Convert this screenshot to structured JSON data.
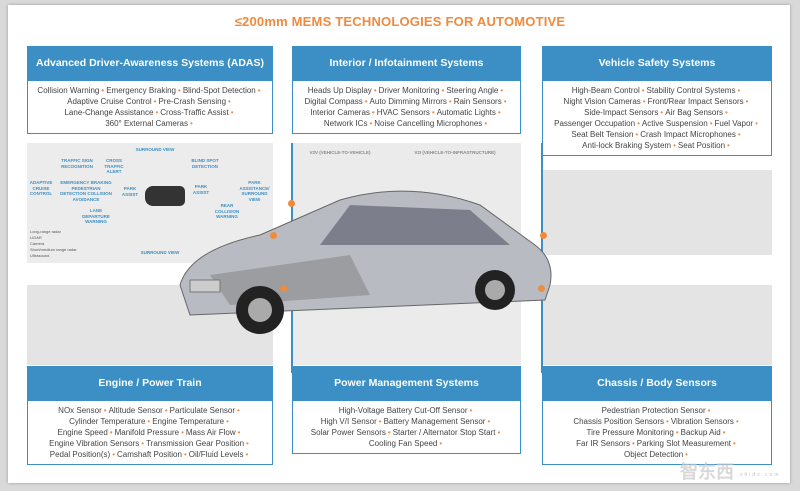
{
  "title": "≤200mm MEMS TECHNOLOGIES FOR AUTOMOTIVE",
  "colors": {
    "accent": "#f08a3c",
    "header": "#3b8fc5"
  },
  "panels": [
    {
      "id": "adas",
      "title": "Advanced Driver-Awareness Systems (ADAS)",
      "lines": [
        [
          "Collision Warning",
          "Emergency Braking",
          "Blind-Spot Detection"
        ],
        [
          "Adaptive Cruise Control",
          "Pre-Crash Sensing"
        ],
        [
          "Lane-Change Assistance",
          "Cross-Traffic Assist"
        ],
        [
          "360° External  Cameras"
        ]
      ]
    },
    {
      "id": "interior",
      "title": "Interior / Infotainment Systems",
      "lines": [
        [
          "Heads Up Display",
          "Driver Monitoring",
          "Steering Angle"
        ],
        [
          "Digital Compass",
          "Auto Dimming Mirrors",
          "Rain Sensors"
        ],
        [
          "Interior Cameras",
          "HVAC Sensors",
          "Automatic Lights"
        ],
        [
          "Network  ICs",
          "Noise Cancelling Microphones"
        ]
      ]
    },
    {
      "id": "safety",
      "title": "Vehicle Safety Systems",
      "lines": [
        [
          "High-Beam Control",
          "Stability Control Systems"
        ],
        [
          "Night Vision Cameras",
          "Front/Rear Impact Sensors"
        ],
        [
          "Side-Impact Sensors",
          "Air Bag Sensors"
        ],
        [
          "Passenger Occupation",
          "Active Suspension",
          "Fuel Vapor"
        ],
        [
          "Seat Belt Tension",
          "Crash Impact Microphones"
        ],
        [
          "Anti-lock Braking System",
          "Seat Position"
        ]
      ]
    },
    {
      "id": "engine",
      "title": "Engine / Power Train",
      "lines": [
        [
          "NOx Sensor",
          "Altitude Sensor",
          "Particulate Sensor"
        ],
        [
          "Cylinder Temperature",
          "Engine Temperature"
        ],
        [
          "Engine Speed",
          "Manifold Pressure",
          "Mass Air Flow"
        ],
        [
          "Engine Vibration Sensors",
          "Transmission Gear Position"
        ],
        [
          "Pedal Position(s)",
          "Camshaft Position",
          "Oil/Fluid Levels"
        ]
      ]
    },
    {
      "id": "power",
      "title": "Power Management Systems",
      "lines": [
        [
          "High-Voltage Battery Cut-Off Sensor"
        ],
        [
          "High V/I Sensor",
          "Battery Management Sensor"
        ],
        [
          "Solar Power Sensors",
          "Starter / Alternator Stop Start"
        ],
        [
          "Cooling Fan Speed"
        ]
      ]
    },
    {
      "id": "chassis",
      "title": "Chassis / Body Sensors",
      "lines": [
        [
          "Pedestrian Protection Sensor"
        ],
        [
          "Chassis Position Sensors",
          "Vibration Sensors"
        ],
        [
          "Tire Pressure Monitoring",
          "Backup Aid"
        ],
        [
          "Far IR Sensors",
          "Parking Slot Measurement"
        ],
        [
          "Object Detection"
        ]
      ]
    }
  ],
  "adas_diagram": {
    "labels": [
      "SURROUND VIEW",
      "TRAFFIC SIGN RECOGNITION",
      "CROSS TRAFFIC ALERT",
      "BLIND SPOT DETECTION",
      "ADAPTIVE CRUISE CONTROL",
      "EMERGENCY BRAKING PEDESTRIAN DETECTION COLLISION AVOIDANCE",
      "PARK ASSIST",
      "PARK ASSIST",
      "PARK ASSISTANCE/ SURROUND VIEW",
      "REAR COLLISION WARNING",
      "LANE DEPARTURE WARNING",
      "SURROUND VIEW"
    ],
    "legend": [
      "Long-range radar",
      "LIDAR",
      "Camera",
      "Short/medium range radar",
      "Ultrasound"
    ]
  },
  "v2x": {
    "v2v": "V2V (VEHICLE-TO-VEHICLE)",
    "v2i": "V2I (VEHICLE-TO-INFRASTRUCTURE)"
  },
  "watermark": {
    "logo": "智东西",
    "url": "zhidx.com"
  }
}
